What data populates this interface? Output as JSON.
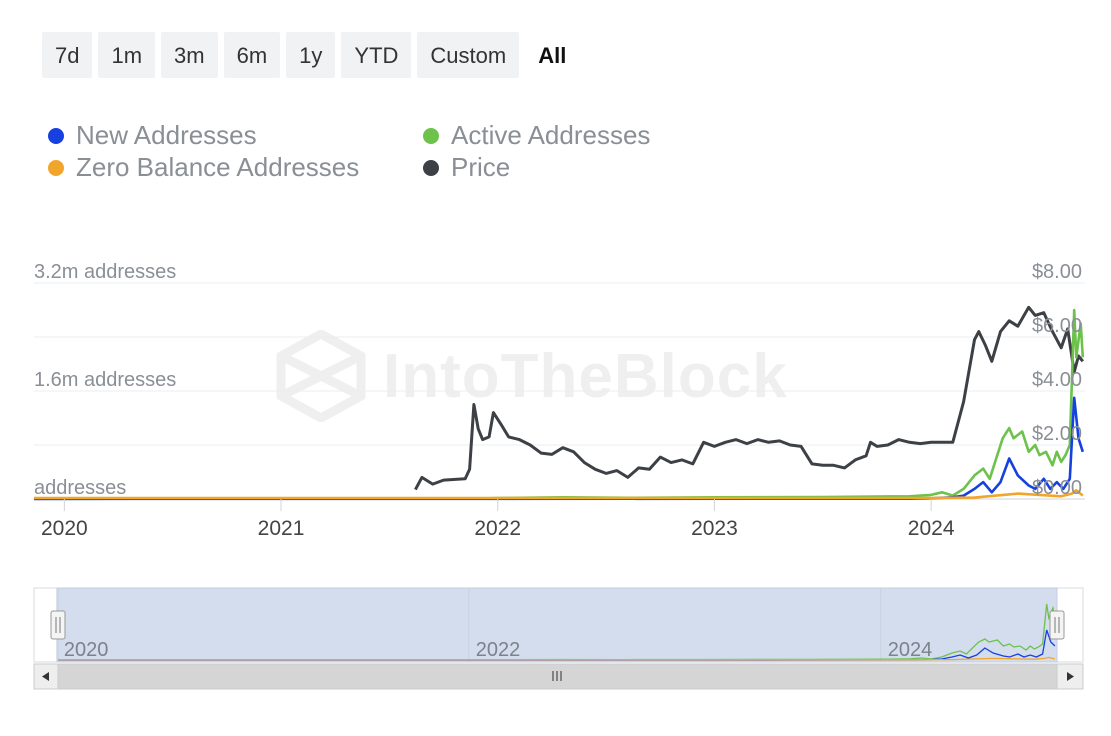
{
  "range_buttons": [
    {
      "label": "7d",
      "active": false
    },
    {
      "label": "1m",
      "active": false
    },
    {
      "label": "3m",
      "active": false
    },
    {
      "label": "6m",
      "active": false
    },
    {
      "label": "1y",
      "active": false
    },
    {
      "label": "YTD",
      "active": false
    },
    {
      "label": "Custom",
      "active": false
    },
    {
      "label": "All",
      "active": true
    }
  ],
  "legend": [
    {
      "label": "New Addresses",
      "color": "#1740e0"
    },
    {
      "label": "Active Addresses",
      "color": "#6cc24a"
    },
    {
      "label": "Zero Balance Addresses",
      "color": "#f2a52b"
    },
    {
      "label": "Price",
      "color": "#3d4045"
    }
  ],
  "watermark": "IntoTheBlock",
  "navigator": {
    "labels": [
      "2020",
      "2022",
      "2024"
    ]
  },
  "chart_data": {
    "type": "line",
    "x_range": [
      2019.86,
      2024.71
    ],
    "x_ticks": [
      2020,
      2021,
      2022,
      2023,
      2024
    ],
    "x_tick_labels": [
      "2020",
      "2021",
      "2022",
      "2023",
      "2024"
    ],
    "left_axis": {
      "labels": [
        "addresses",
        "1.6m addresses",
        "3.2m addresses"
      ],
      "values": [
        0,
        1600000,
        3200000
      ],
      "range": [
        0,
        3200000
      ]
    },
    "right_axis": {
      "labels": [
        "$0.00",
        "$2.00",
        "$4.00",
        "$6.00",
        "$8.00"
      ],
      "values": [
        0,
        2,
        4,
        6,
        8
      ],
      "range": [
        0,
        8
      ]
    },
    "grid": true,
    "legend_position": "top-left",
    "series": [
      {
        "name": "Price",
        "axis": "right",
        "color": "#3d4045",
        "points": [
          [
            2021.62,
            0.35
          ],
          [
            2021.65,
            0.8
          ],
          [
            2021.7,
            0.55
          ],
          [
            2021.75,
            0.7
          ],
          [
            2021.85,
            0.75
          ],
          [
            2021.87,
            1.1
          ],
          [
            2021.89,
            3.5
          ],
          [
            2021.91,
            2.6
          ],
          [
            2021.93,
            2.2
          ],
          [
            2021.96,
            2.3
          ],
          [
            2021.98,
            3.2
          ],
          [
            2022.02,
            2.7
          ],
          [
            2022.05,
            2.3
          ],
          [
            2022.1,
            2.2
          ],
          [
            2022.15,
            2.0
          ],
          [
            2022.2,
            1.7
          ],
          [
            2022.25,
            1.65
          ],
          [
            2022.3,
            1.9
          ],
          [
            2022.35,
            1.75
          ],
          [
            2022.4,
            1.35
          ],
          [
            2022.45,
            1.1
          ],
          [
            2022.5,
            0.95
          ],
          [
            2022.55,
            1.05
          ],
          [
            2022.6,
            0.8
          ],
          [
            2022.65,
            1.15
          ],
          [
            2022.7,
            1.1
          ],
          [
            2022.75,
            1.55
          ],
          [
            2022.8,
            1.35
          ],
          [
            2022.85,
            1.45
          ],
          [
            2022.9,
            1.3
          ],
          [
            2022.95,
            2.1
          ],
          [
            2023.0,
            1.95
          ],
          [
            2023.05,
            2.1
          ],
          [
            2023.1,
            2.2
          ],
          [
            2023.15,
            2.05
          ],
          [
            2023.2,
            2.2
          ],
          [
            2023.25,
            2.1
          ],
          [
            2023.3,
            2.15
          ],
          [
            2023.35,
            2.0
          ],
          [
            2023.4,
            1.95
          ],
          [
            2023.45,
            1.3
          ],
          [
            2023.5,
            1.25
          ],
          [
            2023.55,
            1.25
          ],
          [
            2023.6,
            1.15
          ],
          [
            2023.65,
            1.45
          ],
          [
            2023.7,
            1.6
          ],
          [
            2023.72,
            2.1
          ],
          [
            2023.75,
            1.95
          ],
          [
            2023.8,
            2.0
          ],
          [
            2023.85,
            2.2
          ],
          [
            2023.9,
            2.1
          ],
          [
            2023.95,
            2.05
          ],
          [
            2024.0,
            2.1
          ],
          [
            2024.05,
            2.1
          ],
          [
            2024.1,
            2.1
          ],
          [
            2024.15,
            3.6
          ],
          [
            2024.2,
            5.9
          ],
          [
            2024.22,
            6.2
          ],
          [
            2024.25,
            5.7
          ],
          [
            2024.28,
            5.1
          ],
          [
            2024.32,
            6.2
          ],
          [
            2024.36,
            6.6
          ],
          [
            2024.4,
            6.4
          ],
          [
            2024.45,
            7.1
          ],
          [
            2024.48,
            6.8
          ],
          [
            2024.52,
            6.9
          ],
          [
            2024.56,
            6.2
          ],
          [
            2024.6,
            5.6
          ],
          [
            2024.63,
            6.3
          ],
          [
            2024.66,
            4.7
          ],
          [
            2024.68,
            5.3
          ],
          [
            2024.7,
            5.1
          ]
        ]
      },
      {
        "name": "Active Addresses",
        "axis": "left",
        "color": "#6cc24a",
        "points": [
          [
            2019.86,
            5000
          ],
          [
            2021.9,
            6000
          ],
          [
            2022.0,
            15000
          ],
          [
            2022.3,
            25000
          ],
          [
            2022.6,
            18000
          ],
          [
            2023.0,
            25000
          ],
          [
            2023.5,
            30000
          ],
          [
            2023.9,
            40000
          ],
          [
            2024.0,
            60000
          ],
          [
            2024.05,
            100000
          ],
          [
            2024.1,
            50000
          ],
          [
            2024.15,
            150000
          ],
          [
            2024.2,
            350000
          ],
          [
            2024.24,
            450000
          ],
          [
            2024.27,
            300000
          ],
          [
            2024.3,
            600000
          ],
          [
            2024.33,
            900000
          ],
          [
            2024.36,
            1050000
          ],
          [
            2024.38,
            900000
          ],
          [
            2024.42,
            1000000
          ],
          [
            2024.45,
            700000
          ],
          [
            2024.48,
            800000
          ],
          [
            2024.5,
            650000
          ],
          [
            2024.53,
            700000
          ],
          [
            2024.56,
            500000
          ],
          [
            2024.58,
            700000
          ],
          [
            2024.6,
            550000
          ],
          [
            2024.62,
            650000
          ],
          [
            2024.64,
            800000
          ],
          [
            2024.66,
            2800000
          ],
          [
            2024.67,
            2100000
          ],
          [
            2024.69,
            2600000
          ],
          [
            2024.7,
            2100000
          ]
        ]
      },
      {
        "name": "New Addresses",
        "axis": "left",
        "color": "#1740e0",
        "points": [
          [
            2019.86,
            2000
          ],
          [
            2023.9,
            5000
          ],
          [
            2024.0,
            10000
          ],
          [
            2024.1,
            25000
          ],
          [
            2024.15,
            50000
          ],
          [
            2024.2,
            150000
          ],
          [
            2024.24,
            250000
          ],
          [
            2024.28,
            100000
          ],
          [
            2024.32,
            250000
          ],
          [
            2024.36,
            600000
          ],
          [
            2024.4,
            350000
          ],
          [
            2024.45,
            200000
          ],
          [
            2024.48,
            150000
          ],
          [
            2024.52,
            300000
          ],
          [
            2024.55,
            150000
          ],
          [
            2024.58,
            250000
          ],
          [
            2024.61,
            150000
          ],
          [
            2024.64,
            300000
          ],
          [
            2024.66,
            1500000
          ],
          [
            2024.68,
            900000
          ],
          [
            2024.7,
            700000
          ]
        ]
      },
      {
        "name": "Zero Balance Addresses",
        "axis": "left",
        "color": "#f2a52b",
        "points": [
          [
            2019.86,
            15000
          ],
          [
            2023.0,
            15000
          ],
          [
            2024.0,
            15000
          ],
          [
            2024.2,
            20000
          ],
          [
            2024.3,
            50000
          ],
          [
            2024.4,
            80000
          ],
          [
            2024.5,
            60000
          ],
          [
            2024.6,
            40000
          ],
          [
            2024.65,
            80000
          ],
          [
            2024.67,
            130000
          ],
          [
            2024.7,
            50000
          ]
        ]
      }
    ]
  }
}
